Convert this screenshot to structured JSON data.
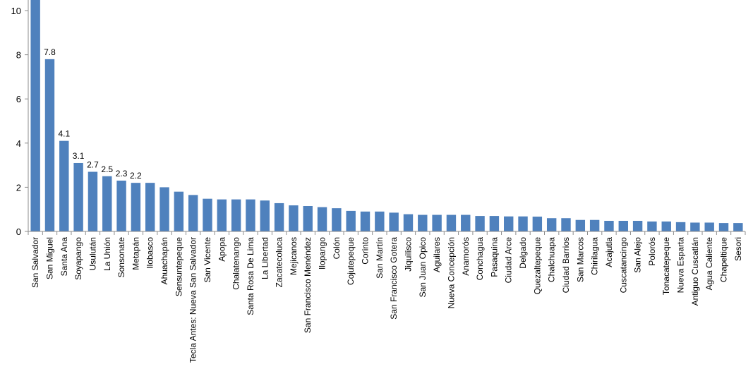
{
  "chart_data": {
    "type": "bar",
    "title": "",
    "xlabel": "",
    "ylabel": "",
    "ylim": [
      0,
      10
    ],
    "yticks": [
      0,
      2,
      4,
      6,
      8,
      10
    ],
    "grid": false,
    "legend": "none",
    "bar_color": "#4F81BD",
    "categories": [
      "San Salvador",
      "San Miguel",
      "Santa Ana",
      "Soyapango",
      "Usulután",
      "La Unión",
      "Sonsonate",
      "Metapán",
      "Ilobasco",
      "Ahuachapán",
      "Sensuntepeque",
      "Tecla Antes: Nueva San Salvador",
      "San Vicente",
      "Apopa",
      "Chalatenango",
      "Santa Rosa De Lima",
      "La Libertad",
      "Zacatecoluca",
      "Mejicanos",
      "San Francisco Menéndez",
      "Ilopango",
      "Colón",
      "Cojutepeque",
      "Corinto",
      "San Martín",
      "San Francisco Gotera",
      "Jiquilisco",
      "San Juan Opico",
      "Aguilares",
      "Nueva Concepción",
      "Anamorós",
      "Conchagua",
      "Pasaquina",
      "Ciudad Arce",
      "Delgado",
      "Quezaltepeque",
      "Chalchuapa",
      "Ciudad Barrios",
      "San Marcos",
      "Chirilagua",
      "Acajutla",
      "Cuscatancingo",
      "San Alejo",
      "Polorós",
      "Tonacatepeque",
      "Nueva Esparta",
      "Antiguo Cuscatlán",
      "Agua Caliente",
      "Chapeltique",
      "Sesori"
    ],
    "values": [
      10.5,
      7.8,
      4.1,
      3.1,
      2.7,
      2.5,
      2.3,
      2.2,
      2.2,
      2.0,
      1.8,
      1.65,
      1.48,
      1.45,
      1.45,
      1.45,
      1.4,
      1.28,
      1.18,
      1.15,
      1.1,
      1.05,
      0.93,
      0.9,
      0.9,
      0.85,
      0.78,
      0.75,
      0.75,
      0.75,
      0.75,
      0.7,
      0.7,
      0.68,
      0.68,
      0.67,
      0.6,
      0.6,
      0.52,
      0.52,
      0.48,
      0.48,
      0.48,
      0.45,
      0.45,
      0.42,
      0.4,
      0.4,
      0.38,
      0.38
    ],
    "data_labels": [
      {
        "index": 1,
        "text": "7.8"
      },
      {
        "index": 2,
        "text": "4.1"
      },
      {
        "index": 3,
        "text": "3.1"
      },
      {
        "index": 4,
        "text": "2.7"
      },
      {
        "index": 5,
        "text": "2.5"
      },
      {
        "index": 6,
        "text": "2.3"
      },
      {
        "index": 7,
        "text": "2.2"
      }
    ]
  }
}
